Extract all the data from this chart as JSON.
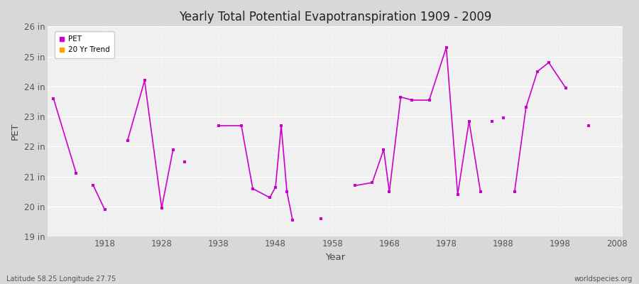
{
  "title": "Yearly Total Potential Evapotranspiration 1909 - 2009",
  "xlabel": "Year",
  "ylabel": "PET",
  "subtitle_left": "Latitude 58.25 Longitude 27.75",
  "subtitle_right": "worldspecies.org",
  "background_color": "#d8d8d8",
  "plot_bg_color": "#f0f0f0",
  "grid_color": "#ffffff",
  "ylim": [
    19,
    26
  ],
  "xlim": [
    1908,
    2009
  ],
  "ytick_labels": [
    "19 in",
    "20 in",
    "21 in",
    "22 in",
    "23 in",
    "24 in",
    "25 in",
    "26 in"
  ],
  "ytick_values": [
    19,
    20,
    21,
    22,
    23,
    24,
    25,
    26
  ],
  "xtick_values": [
    1918,
    1928,
    1938,
    1948,
    1958,
    1968,
    1978,
    1988,
    1998,
    2008
  ],
  "pet_color": "#cc00cc",
  "trend_color": "#ffa500",
  "pet_segments": [
    {
      "years": [
        1909,
        1913
      ],
      "values": [
        23.6,
        21.1
      ]
    },
    {
      "years": [
        1916,
        1918
      ],
      "values": [
        20.7,
        19.9
      ]
    },
    {
      "years": [
        1922,
        1925
      ],
      "values": [
        22.2,
        24.2
      ]
    },
    {
      "years": [
        1925,
        1928
      ],
      "values": [
        24.2,
        19.95
      ]
    },
    {
      "years": [
        1928,
        1930
      ],
      "values": [
        19.95,
        21.9
      ]
    },
    {
      "years": [
        1932
      ],
      "values": [
        21.5
      ]
    },
    {
      "years": [
        1938,
        1942
      ],
      "values": [
        22.7,
        22.7
      ]
    },
    {
      "years": [
        1942,
        1944
      ],
      "values": [
        22.7,
        20.6
      ]
    },
    {
      "years": [
        1944,
        1947
      ],
      "values": [
        20.6,
        20.3
      ]
    },
    {
      "years": [
        1947,
        1948
      ],
      "values": [
        20.3,
        20.65
      ]
    },
    {
      "years": [
        1948,
        1949
      ],
      "values": [
        20.65,
        22.7
      ]
    },
    {
      "years": [
        1949,
        1950
      ],
      "values": [
        22.7,
        20.5
      ]
    },
    {
      "years": [
        1950,
        1951
      ],
      "values": [
        20.5,
        19.55
      ]
    },
    {
      "years": [
        1956
      ],
      "values": [
        19.6
      ]
    },
    {
      "years": [
        1962,
        1965
      ],
      "values": [
        20.7,
        20.8
      ]
    },
    {
      "years": [
        1965,
        1967
      ],
      "values": [
        20.8,
        21.9
      ]
    },
    {
      "years": [
        1967,
        1968
      ],
      "values": [
        21.9,
        20.5
      ]
    },
    {
      "years": [
        1968,
        1970
      ],
      "values": [
        20.5,
        23.65
      ]
    },
    {
      "years": [
        1970,
        1972
      ],
      "values": [
        23.65,
        23.55
      ]
    },
    {
      "years": [
        1972,
        1975
      ],
      "values": [
        23.55,
        23.55
      ]
    },
    {
      "years": [
        1975,
        1978
      ],
      "values": [
        23.55,
        25.3
      ]
    },
    {
      "years": [
        1978,
        1980
      ],
      "values": [
        25.3,
        20.4
      ]
    },
    {
      "years": [
        1980,
        1982
      ],
      "values": [
        20.4,
        22.85
      ]
    },
    {
      "years": [
        1982,
        1984
      ],
      "values": [
        22.85,
        20.5
      ]
    },
    {
      "years": [
        1986
      ],
      "values": [
        22.85
      ]
    },
    {
      "years": [
        1988
      ],
      "values": [
        22.95
      ]
    },
    {
      "years": [
        1990,
        1992
      ],
      "values": [
        20.5,
        23.3
      ]
    },
    {
      "years": [
        1992,
        1994
      ],
      "values": [
        23.3,
        24.5
      ]
    },
    {
      "years": [
        1994,
        1996
      ],
      "values": [
        24.5,
        24.8
      ]
    },
    {
      "years": [
        1996,
        1999
      ],
      "values": [
        24.8,
        23.95
      ]
    },
    {
      "years": [
        2003
      ],
      "values": [
        22.7
      ]
    }
  ],
  "pet_dots": [
    {
      "year": 1932,
      "value": 21.5
    },
    {
      "year": 1956,
      "value": 19.6
    },
    {
      "year": 1986,
      "value": 22.85
    },
    {
      "year": 1988,
      "value": 22.95
    },
    {
      "year": 2003,
      "value": 22.7
    }
  ]
}
